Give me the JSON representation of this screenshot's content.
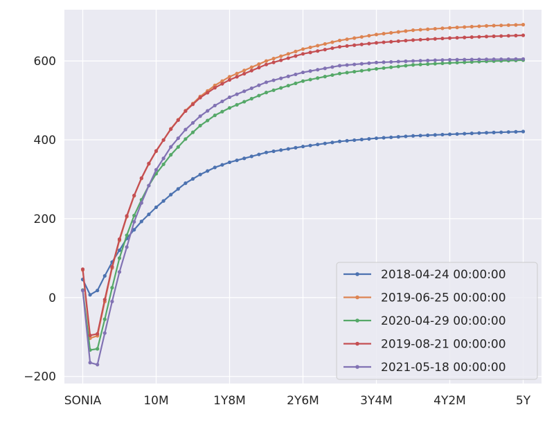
{
  "chart_data": {
    "type": "line",
    "title": "",
    "xlabel": "",
    "ylabel": "",
    "x_tick_labels": [
      "SONIA",
      "10M",
      "1Y8M",
      "2Y6M",
      "3Y4M",
      "4Y2M",
      "5Y"
    ],
    "x_tick_positions": [
      0,
      10,
      20,
      30,
      40,
      50,
      60
    ],
    "x_range": [
      -2.5,
      62.5
    ],
    "y_ticks": [
      -200,
      0,
      200,
      400,
      600
    ],
    "y_tick_labels": [
      "−200",
      "0",
      "200",
      "400",
      "600"
    ],
    "ylim": [
      -218,
      730
    ],
    "grid": true,
    "legend_position": "lower-right",
    "background_color": "#eaeaf2",
    "series": [
      {
        "name": "2018-04-24 00:00:00",
        "color": "#4c72b0",
        "anchors": [
          [
            0,
            46
          ],
          [
            1,
            7
          ],
          [
            2,
            18
          ],
          [
            3,
            55
          ],
          [
            4,
            90
          ],
          [
            5,
            120
          ],
          [
            6,
            150
          ],
          [
            7,
            172
          ],
          [
            8,
            193
          ],
          [
            9,
            211
          ],
          [
            10,
            229
          ],
          [
            12,
            261
          ],
          [
            14,
            290
          ],
          [
            16,
            312
          ],
          [
            18,
            330
          ],
          [
            20,
            343
          ],
          [
            25,
            368
          ],
          [
            30,
            383
          ],
          [
            35,
            396
          ],
          [
            40,
            404
          ],
          [
            45,
            410
          ],
          [
            50,
            414
          ],
          [
            55,
            418
          ],
          [
            60,
            421
          ]
        ]
      },
      {
        "name": "2019-06-25 00:00:00",
        "color": "#dd8452",
        "anchors": [
          [
            0,
            70
          ],
          [
            1,
            -103
          ],
          [
            2,
            -97
          ],
          [
            3,
            -10
          ],
          [
            4,
            75
          ],
          [
            5,
            145
          ],
          [
            6,
            205
          ],
          [
            7,
            258
          ],
          [
            8,
            302
          ],
          [
            9,
            339
          ],
          [
            10,
            371
          ],
          [
            12,
            428
          ],
          [
            14,
            474
          ],
          [
            16,
            510
          ],
          [
            18,
            538
          ],
          [
            20,
            560
          ],
          [
            25,
            600
          ],
          [
            30,
            630
          ],
          [
            35,
            652
          ],
          [
            40,
            667
          ],
          [
            45,
            678
          ],
          [
            50,
            684
          ],
          [
            55,
            689
          ],
          [
            60,
            692
          ]
        ]
      },
      {
        "name": "2020-04-29 00:00:00",
        "color": "#55a868",
        "anchors": [
          [
            0,
            19
          ],
          [
            1,
            -133
          ],
          [
            2,
            -130
          ],
          [
            3,
            -55
          ],
          [
            4,
            25
          ],
          [
            5,
            100
          ],
          [
            6,
            158
          ],
          [
            7,
            208
          ],
          [
            8,
            248
          ],
          [
            9,
            284
          ],
          [
            10,
            314
          ],
          [
            12,
            362
          ],
          [
            14,
            402
          ],
          [
            16,
            436
          ],
          [
            18,
            462
          ],
          [
            20,
            481
          ],
          [
            25,
            520
          ],
          [
            30,
            549
          ],
          [
            35,
            568
          ],
          [
            40,
            580
          ],
          [
            45,
            590
          ],
          [
            50,
            595
          ],
          [
            55,
            599
          ],
          [
            60,
            602
          ]
        ]
      },
      {
        "name": "2019-08-21 00:00:00",
        "color": "#c44e52",
        "anchors": [
          [
            0,
            72
          ],
          [
            1,
            -96
          ],
          [
            2,
            -92
          ],
          [
            3,
            -5
          ],
          [
            4,
            78
          ],
          [
            5,
            148
          ],
          [
            6,
            207
          ],
          [
            7,
            259
          ],
          [
            8,
            303
          ],
          [
            9,
            340
          ],
          [
            10,
            372
          ],
          [
            12,
            427
          ],
          [
            14,
            473
          ],
          [
            16,
            507
          ],
          [
            18,
            532
          ],
          [
            20,
            552
          ],
          [
            25,
            591
          ],
          [
            30,
            618
          ],
          [
            35,
            636
          ],
          [
            40,
            646
          ],
          [
            45,
            653
          ],
          [
            50,
            658
          ],
          [
            55,
            662
          ],
          [
            60,
            665
          ]
        ]
      },
      {
        "name": "2021-05-18 00:00:00",
        "color": "#8172b3",
        "anchors": [
          [
            0,
            18
          ],
          [
            1,
            -165
          ],
          [
            2,
            -170
          ],
          [
            3,
            -90
          ],
          [
            4,
            -10
          ],
          [
            5,
            65
          ],
          [
            6,
            128
          ],
          [
            7,
            192
          ],
          [
            8,
            240
          ],
          [
            9,
            284
          ],
          [
            10,
            324
          ],
          [
            12,
            382
          ],
          [
            14,
            426
          ],
          [
            16,
            460
          ],
          [
            18,
            487
          ],
          [
            20,
            508
          ],
          [
            25,
            546
          ],
          [
            30,
            571
          ],
          [
            35,
            588
          ],
          [
            40,
            596
          ],
          [
            45,
            600
          ],
          [
            50,
            603
          ],
          [
            55,
            604
          ],
          [
            60,
            605
          ]
        ]
      }
    ]
  }
}
